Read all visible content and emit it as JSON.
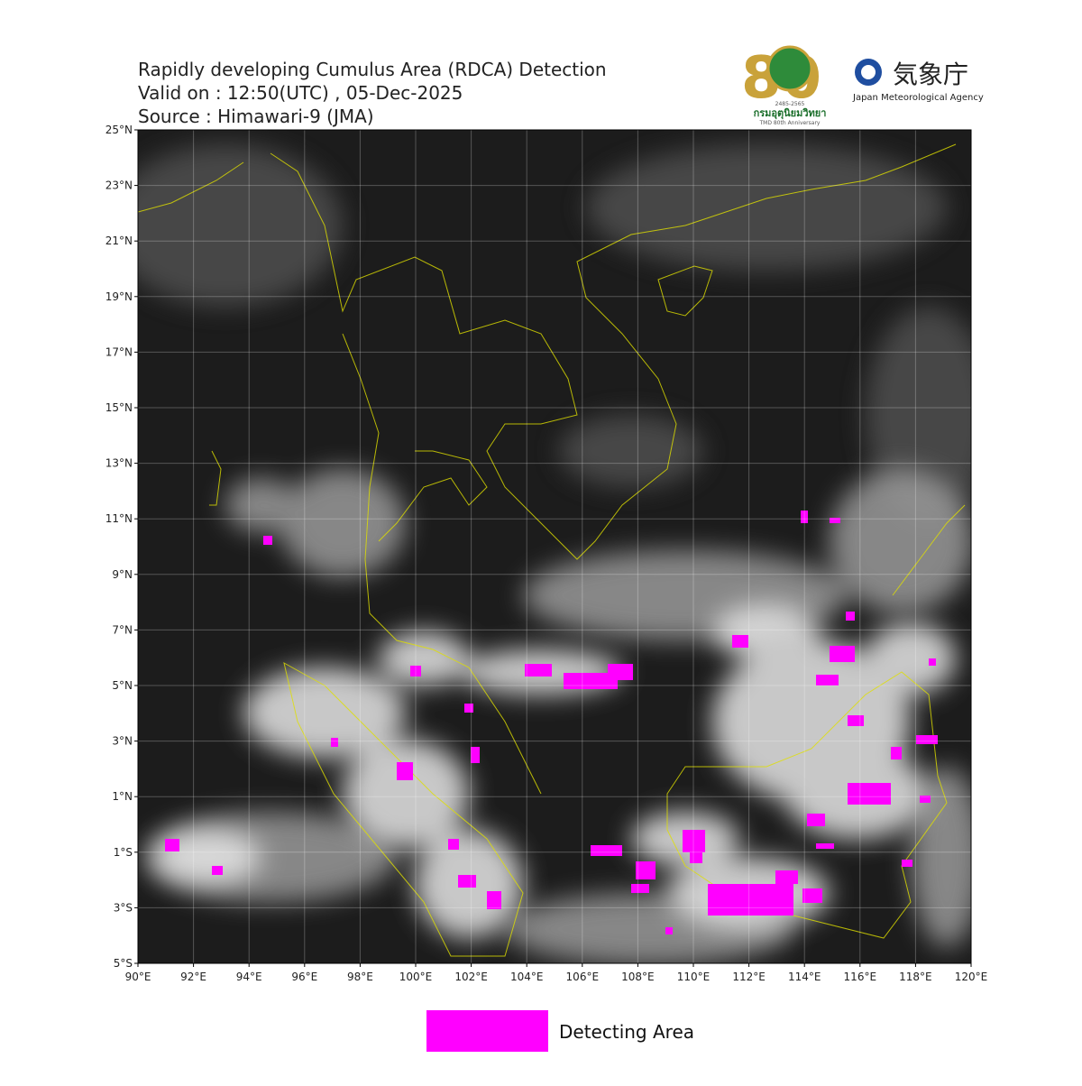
{
  "header": {
    "title": "Rapidly developing Cumulus Area (RDCA) Detection",
    "valid": "Valid on : 12:50(UTC) , 05-Dec-2025",
    "source": "Source : Himawari-9 (JMA)"
  },
  "logos": {
    "tmd_number": "80",
    "tmd_years": "2485-2565",
    "tmd_name": "กรมอุตุนิยมวิทยา",
    "tmd_anniversary": "TMD 80th Anniversary",
    "jma_name": "気象庁",
    "jma_english": "Japan Meteorological Agency"
  },
  "map": {
    "xlim": [
      90,
      120
    ],
    "ylim": [
      -5,
      25
    ],
    "xticks": [
      {
        "value": 90,
        "label": "90°E"
      },
      {
        "value": 92,
        "label": "92°E"
      },
      {
        "value": 94,
        "label": "94°E"
      },
      {
        "value": 96,
        "label": "96°E"
      },
      {
        "value": 98,
        "label": "98°E"
      },
      {
        "value": 100,
        "label": "100°E"
      },
      {
        "value": 102,
        "label": "102°E"
      },
      {
        "value": 104,
        "label": "104°E"
      },
      {
        "value": 106,
        "label": "106°E"
      },
      {
        "value": 108,
        "label": "108°E"
      },
      {
        "value": 110,
        "label": "110°E"
      },
      {
        "value": 112,
        "label": "112°E"
      },
      {
        "value": 114,
        "label": "114°E"
      },
      {
        "value": 116,
        "label": "116°E"
      },
      {
        "value": 118,
        "label": "118°E"
      },
      {
        "value": 120,
        "label": "120°E"
      }
    ],
    "yticks": [
      {
        "value": 25,
        "label": "25°N"
      },
      {
        "value": 23,
        "label": "23°N"
      },
      {
        "value": 21,
        "label": "21°N"
      },
      {
        "value": 19,
        "label": "19°N"
      },
      {
        "value": 17,
        "label": "17°N"
      },
      {
        "value": 15,
        "label": "15°N"
      },
      {
        "value": 13,
        "label": "13°N"
      },
      {
        "value": 11,
        "label": "11°N"
      },
      {
        "value": 9,
        "label": "9°N"
      },
      {
        "value": 7,
        "label": "7°N"
      },
      {
        "value": 5,
        "label": "5°N"
      },
      {
        "value": 3,
        "label": "3°N"
      },
      {
        "value": 1,
        "label": "1°N"
      },
      {
        "value": -1,
        "label": "1°S"
      },
      {
        "value": -3,
        "label": "3°S"
      },
      {
        "value": -5,
        "label": "5°S"
      }
    ],
    "grid": true
  },
  "legend": {
    "label": "Detecting Area",
    "color": "#ff00ff"
  }
}
